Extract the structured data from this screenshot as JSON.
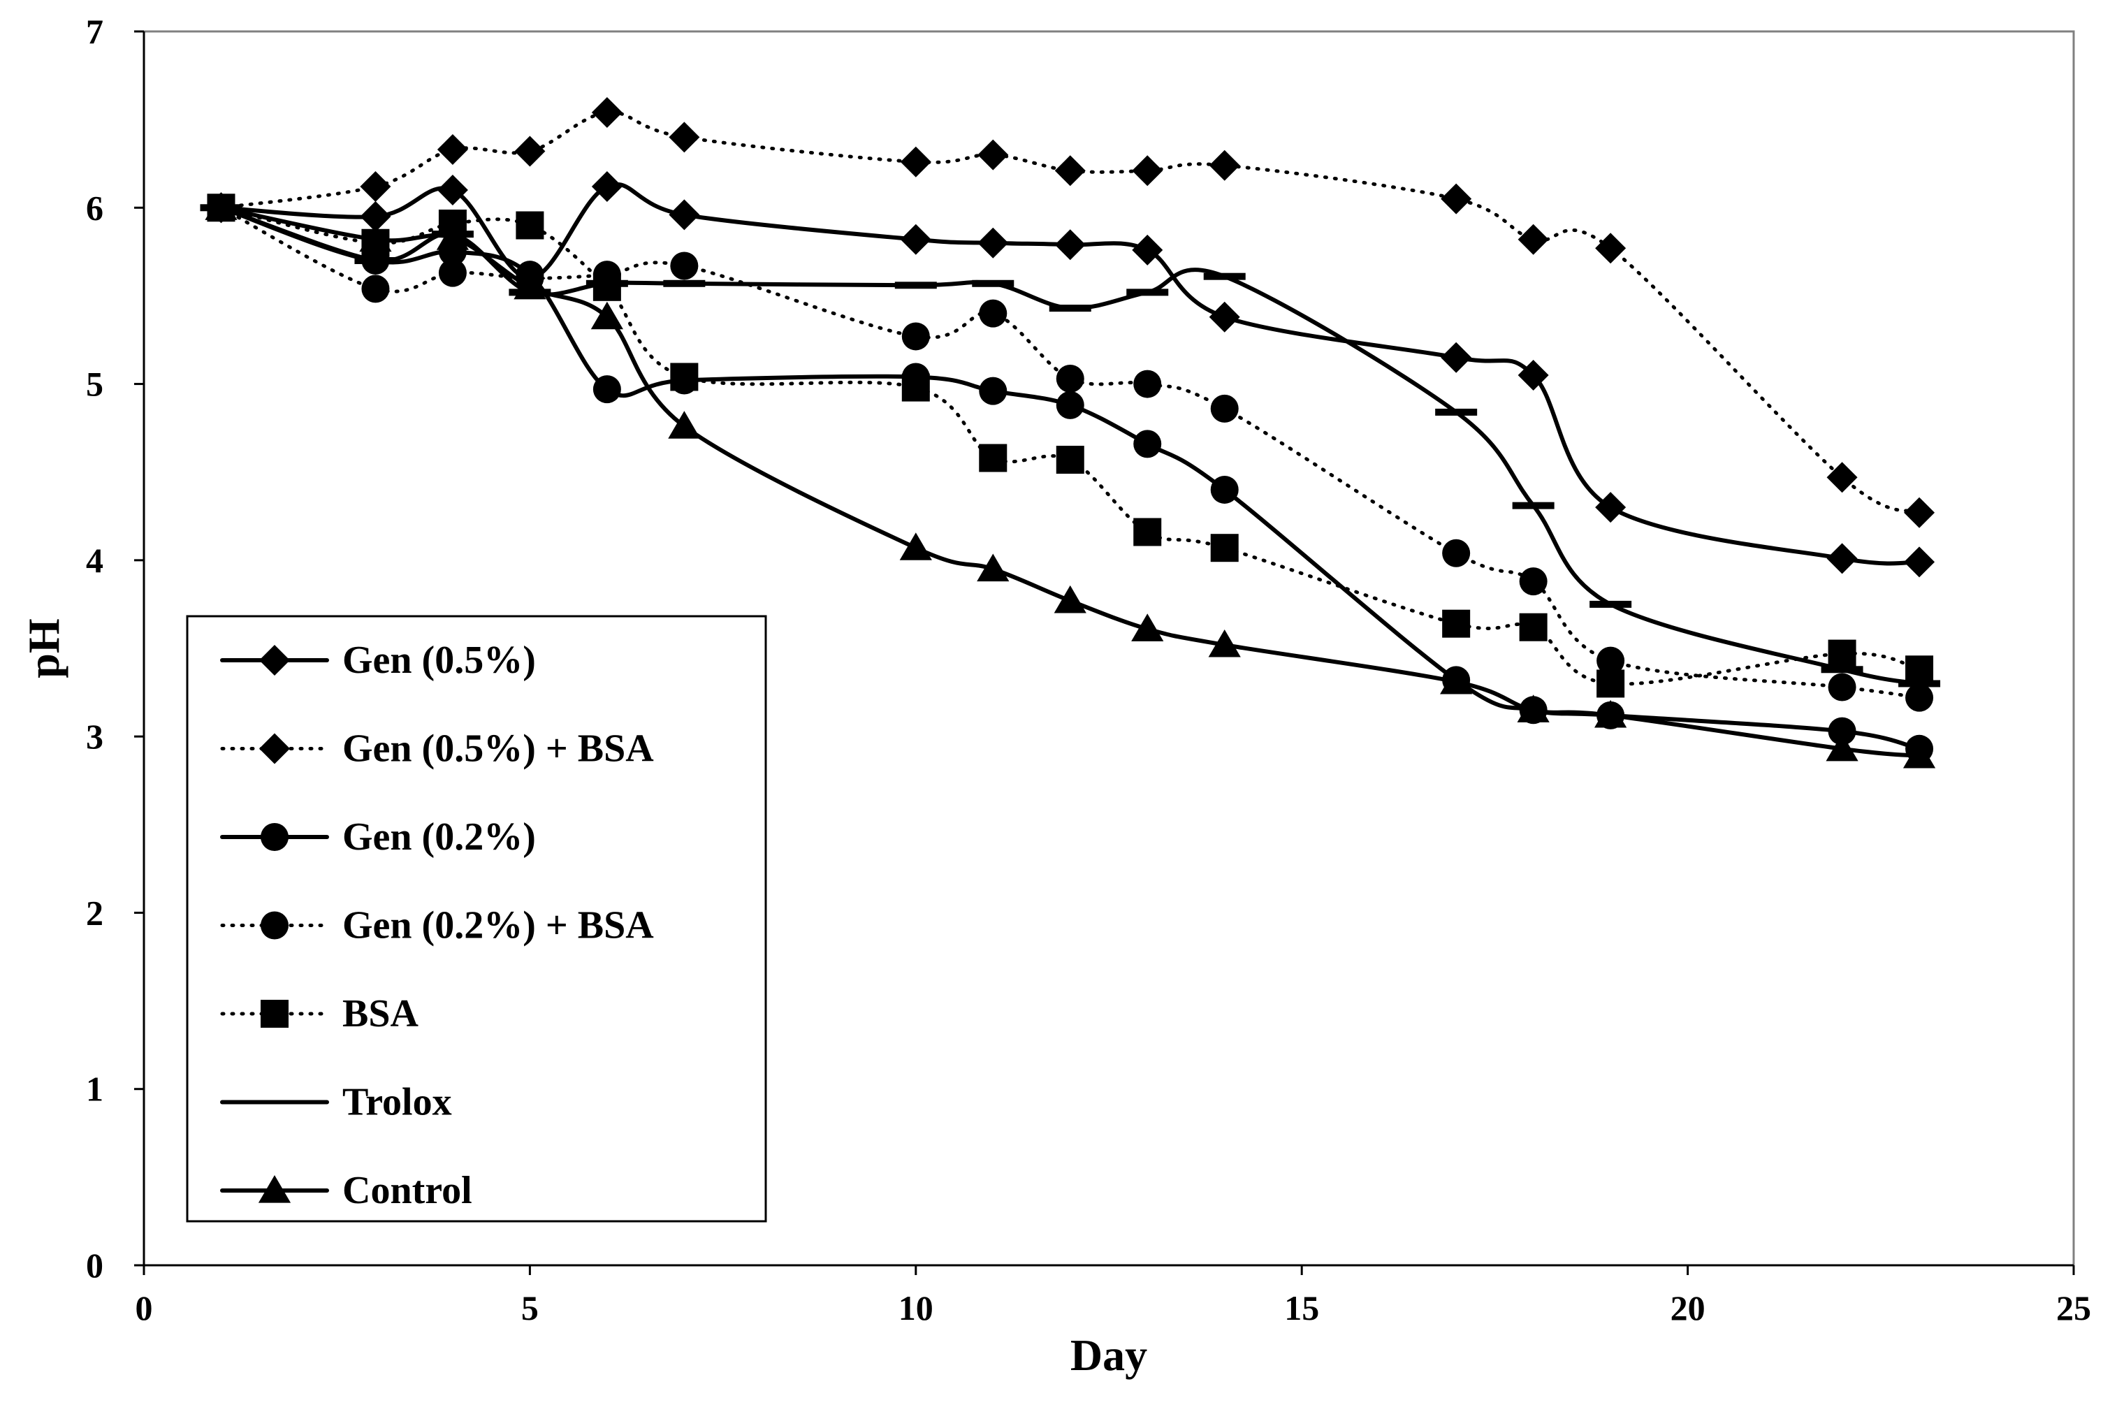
{
  "chart_data": {
    "type": "line",
    "title": "",
    "xlabel": "Day",
    "ylabel": "pH",
    "xlim": [
      0,
      25
    ],
    "ylim": [
      0,
      7
    ],
    "xticks": [
      0,
      5,
      10,
      15,
      20,
      25
    ],
    "yticks": [
      0,
      1,
      2,
      3,
      4,
      5,
      6,
      7
    ],
    "grid": false,
    "legend_position": "bottom-left",
    "series": [
      {
        "name": "Gen (0.5%)",
        "line": "solid",
        "marker": "diamond",
        "x": [
          1,
          3,
          4,
          5,
          6,
          7,
          10,
          11,
          12,
          13,
          14,
          17,
          18,
          19,
          22,
          23
        ],
        "y": [
          6.0,
          5.95,
          6.1,
          5.6,
          6.12,
          5.96,
          5.82,
          5.8,
          5.79,
          5.76,
          5.38,
          5.15,
          5.05,
          4.3,
          4.01,
          3.99
        ]
      },
      {
        "name": "Gen (0.5%) + BSA",
        "line": "dotted",
        "marker": "diamond",
        "x": [
          1,
          3,
          4,
          5,
          6,
          7,
          10,
          11,
          12,
          13,
          14,
          17,
          18,
          19,
          22,
          23
        ],
        "y": [
          6.0,
          6.12,
          6.33,
          6.32,
          6.54,
          6.4,
          6.26,
          6.3,
          6.21,
          6.21,
          6.24,
          6.05,
          5.82,
          5.77,
          4.47,
          4.27
        ]
      },
      {
        "name": "Gen (0.2%)",
        "line": "solid",
        "marker": "circle",
        "x": [
          1,
          3,
          4,
          5,
          6,
          7,
          10,
          11,
          12,
          13,
          14,
          17,
          18,
          19,
          22,
          23
        ],
        "y": [
          6.0,
          5.7,
          5.75,
          5.62,
          4.97,
          5.02,
          5.04,
          4.96,
          4.88,
          4.66,
          4.4,
          3.32,
          3.15,
          3.12,
          3.03,
          2.93
        ]
      },
      {
        "name": "Gen (0.2%) + BSA",
        "line": "dotted",
        "marker": "circle",
        "x": [
          1,
          3,
          4,
          5,
          6,
          7,
          10,
          11,
          12,
          13,
          14,
          17,
          18,
          19,
          22,
          23
        ],
        "y": [
          6.0,
          5.54,
          5.63,
          5.6,
          5.62,
          5.67,
          5.27,
          5.4,
          5.03,
          5.0,
          4.86,
          4.04,
          3.88,
          3.43,
          3.28,
          3.22
        ]
      },
      {
        "name": "BSA",
        "line": "dotted",
        "marker": "square",
        "x": [
          1,
          3,
          4,
          5,
          6,
          7,
          10,
          11,
          12,
          13,
          14,
          17,
          18,
          19,
          22,
          23
        ],
        "y": [
          6.0,
          5.8,
          5.91,
          5.9,
          5.55,
          5.04,
          4.98,
          4.58,
          4.57,
          4.16,
          4.07,
          3.64,
          3.62,
          3.3,
          3.47,
          3.38
        ]
      },
      {
        "name": "Trolox",
        "line": "solid",
        "marker": "dash",
        "x": [
          1,
          3,
          4,
          5,
          6,
          7,
          10,
          11,
          12,
          13,
          14,
          17,
          18,
          19,
          22,
          23
        ],
        "y": [
          6.0,
          5.7,
          5.85,
          5.52,
          5.57,
          5.57,
          5.56,
          5.57,
          5.43,
          5.52,
          5.61,
          4.84,
          4.31,
          3.75,
          3.38,
          3.3
        ]
      },
      {
        "name": "Control",
        "line": "solid",
        "marker": "triangle",
        "x": [
          1,
          3,
          4,
          5,
          6,
          7,
          10,
          11,
          12,
          13,
          14,
          17,
          18,
          19,
          22,
          23
        ],
        "y": [
          6.0,
          5.82,
          5.83,
          5.55,
          5.38,
          4.76,
          4.07,
          3.95,
          3.77,
          3.61,
          3.52,
          3.31,
          3.15,
          3.12,
          2.93,
          2.89
        ]
      }
    ]
  }
}
